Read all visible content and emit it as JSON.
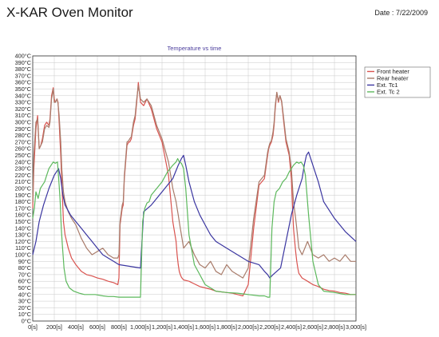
{
  "app": {
    "title": "X-KAR Oven Monitor",
    "date_label": "Date :",
    "date_value": "7/22/2009"
  },
  "chart_data": {
    "type": "line",
    "title": "Temperature vs time",
    "xlabel": "",
    "ylabel": "",
    "xlim": [
      0,
      3000
    ],
    "ylim": [
      0,
      400
    ],
    "x_ticks": [
      "0[s]",
      "200[s]",
      "400[s]",
      "600[s]",
      "800[s]",
      "1,000[s]",
      "1,200[s]",
      "1,400[s]",
      "1,600[s]",
      "1,800[s]",
      "2,000[s]",
      "2,200[s]",
      "2,400[s]",
      "2,600[s]",
      "2,800[s]",
      "3,000[s]"
    ],
    "y_ticks": [
      "0°C",
      "10°C",
      "20°C",
      "30°C",
      "40°C",
      "50°C",
      "60°C",
      "70°C",
      "80°C",
      "90°C",
      "100°C",
      "110°C",
      "120°C",
      "130°C",
      "140°C",
      "150°C",
      "160°C",
      "170°C",
      "180°C",
      "190°C",
      "200°C",
      "210°C",
      "220°C",
      "230°C",
      "240°C",
      "250°C",
      "260°C",
      "270°C",
      "280°C",
      "290°C",
      "300°C",
      "310°C",
      "320°C",
      "330°C",
      "340°C",
      "350°C",
      "360°C",
      "370°C",
      "380°C",
      "390°C",
      "400°C"
    ],
    "grid": true,
    "legend_position": "right",
    "series": [
      {
        "name": "Front heater",
        "color": "#d9534f",
        "x": [
          0,
          10,
          30,
          45,
          60,
          75,
          90,
          110,
          130,
          150,
          160,
          175,
          190,
          200,
          210,
          225,
          235,
          245,
          260,
          270,
          285,
          300,
          330,
          360,
          400,
          450,
          500,
          550,
          600,
          650,
          700,
          750,
          790,
          800,
          810,
          830,
          840,
          850,
          875,
          890,
          900,
          915,
          935,
          950,
          965,
          980,
          1000,
          1030,
          1060,
          1100,
          1150,
          1200,
          1260,
          1300,
          1330,
          1340,
          1350,
          1360,
          1370,
          1380,
          1400,
          1450,
          1500,
          1550,
          1600,
          1650,
          1700,
          1750,
          1800,
          1850,
          1900,
          1950,
          2000,
          2050,
          2100,
          2150,
          2180,
          2190,
          2200,
          2215,
          2230,
          2240,
          2250,
          2265,
          2280,
          2295,
          2310,
          2330,
          2350,
          2380,
          2400,
          2420,
          2440,
          2450,
          2460,
          2470,
          2500,
          2550,
          2600,
          2650,
          2700,
          2750,
          2800,
          2850,
          2900,
          2950,
          3000
        ],
        "y": [
          170,
          230,
          290,
          310,
          260,
          265,
          275,
          295,
          300,
          295,
          305,
          340,
          352,
          335,
          330,
          335,
          330,
          300,
          250,
          210,
          150,
          130,
          110,
          95,
          85,
          75,
          70,
          68,
          65,
          63,
          60,
          58,
          55,
          65,
          145,
          170,
          175,
          215,
          265,
          270,
          270,
          275,
          295,
          305,
          330,
          360,
          330,
          325,
          335,
          320,
          290,
          270,
          220,
          150,
          120,
          100,
          85,
          75,
          70,
          66,
          62,
          60,
          56,
          52,
          50,
          48,
          45,
          44,
          43,
          42,
          40,
          38,
          55,
          140,
          205,
          215,
          250,
          260,
          265,
          270,
          280,
          295,
          320,
          345,
          330,
          340,
          330,
          300,
          270,
          250,
          215,
          140,
          105,
          90,
          80,
          72,
          65,
          60,
          55,
          52,
          48,
          46,
          45,
          43,
          42,
          40,
          40
        ]
      },
      {
        "name": "Rear heater",
        "color": "#a87b6a",
        "x": [
          0,
          10,
          30,
          45,
          60,
          75,
          90,
          110,
          130,
          150,
          160,
          175,
          190,
          200,
          210,
          225,
          235,
          245,
          260,
          270,
          285,
          300,
          330,
          360,
          400,
          450,
          500,
          550,
          600,
          650,
          700,
          750,
          790,
          800,
          810,
          830,
          840,
          850,
          875,
          890,
          900,
          915,
          935,
          950,
          965,
          980,
          1000,
          1030,
          1060,
          1100,
          1150,
          1200,
          1260,
          1300,
          1330,
          1340,
          1350,
          1360,
          1370,
          1380,
          1400,
          1450,
          1500,
          1550,
          1600,
          1650,
          1700,
          1750,
          1800,
          1850,
          1900,
          1950,
          2000,
          2050,
          2100,
          2150,
          2180,
          2190,
          2200,
          2215,
          2230,
          2240,
          2250,
          2265,
          2280,
          2295,
          2310,
          2330,
          2350,
          2380,
          2400,
          2420,
          2440,
          2450,
          2460,
          2470,
          2500,
          2550,
          2600,
          2650,
          2700,
          2750,
          2800,
          2850,
          2900,
          2950,
          3000
        ],
        "y": [
          180,
          250,
          300,
          305,
          260,
          265,
          270,
          290,
          295,
          292,
          300,
          335,
          350,
          330,
          330,
          335,
          328,
          310,
          270,
          230,
          195,
          180,
          165,
          155,
          145,
          125,
          110,
          100,
          105,
          110,
          100,
          95,
          95,
          100,
          150,
          175,
          180,
          220,
          270,
          272,
          275,
          278,
          300,
          310,
          335,
          355,
          335,
          330,
          335,
          325,
          295,
          275,
          240,
          200,
          180,
          170,
          160,
          150,
          140,
          130,
          110,
          120,
          100,
          85,
          80,
          90,
          75,
          70,
          85,
          75,
          70,
          65,
          80,
          155,
          210,
          220,
          255,
          262,
          268,
          272,
          285,
          300,
          325,
          345,
          332,
          340,
          332,
          305,
          275,
          255,
          230,
          180,
          155,
          140,
          125,
          110,
          100,
          120,
          100,
          95,
          100,
          90,
          95,
          90,
          100,
          90,
          90
        ]
      },
      {
        "name": "Ext. Tc1",
        "color": "#3a35a0",
        "x": [
          0,
          30,
          60,
          100,
          150,
          200,
          240,
          260,
          280,
          300,
          350,
          400,
          450,
          500,
          550,
          600,
          650,
          700,
          750,
          800,
          1000,
          1030,
          1100,
          1200,
          1300,
          1350,
          1380,
          1400,
          1420,
          1450,
          1500,
          1550,
          1600,
          1650,
          1700,
          1800,
          1900,
          2000,
          2100,
          2150,
          2180,
          2200,
          2230,
          2300,
          2400,
          2450,
          2500,
          2520,
          2540,
          2560,
          2600,
          2650,
          2700,
          2800,
          2900,
          3000
        ],
        "y": [
          100,
          120,
          150,
          175,
          200,
          220,
          230,
          215,
          190,
          175,
          160,
          150,
          140,
          130,
          120,
          110,
          100,
          95,
          90,
          85,
          80,
          165,
          175,
          195,
          215,
          235,
          245,
          250,
          235,
          210,
          180,
          160,
          145,
          130,
          120,
          110,
          100,
          90,
          85,
          75,
          70,
          65,
          70,
          80,
          160,
          190,
          215,
          235,
          250,
          255,
          235,
          210,
          180,
          155,
          135,
          120
        ]
      },
      {
        "name": "Ext. Tc 2",
        "color": "#5cb85c",
        "x": [
          0,
          15,
          30,
          50,
          70,
          90,
          110,
          130,
          150,
          170,
          190,
          210,
          230,
          245,
          255,
          265,
          275,
          290,
          310,
          340,
          380,
          430,
          480,
          530,
          580,
          650,
          700,
          750,
          800,
          1000,
          1020,
          1040,
          1060,
          1080,
          1100,
          1150,
          1200,
          1250,
          1300,
          1330,
          1345,
          1360,
          1380,
          1400,
          1420,
          1450,
          1500,
          1550,
          1600,
          1650,
          1700,
          1800,
          1900,
          2000,
          2100,
          2150,
          2180,
          2200,
          2220,
          2240,
          2260,
          2290,
          2320,
          2350,
          2380,
          2420,
          2450,
          2470,
          2490,
          2510,
          2530,
          2560,
          2600,
          2650,
          2700,
          2800,
          2900,
          3000
        ],
        "y": [
          155,
          170,
          195,
          185,
          200,
          205,
          210,
          220,
          230,
          235,
          240,
          238,
          240,
          205,
          180,
          140,
          115,
          80,
          60,
          50,
          45,
          42,
          40,
          40,
          40,
          38,
          37,
          37,
          36,
          36,
          150,
          170,
          178,
          180,
          190,
          200,
          210,
          225,
          235,
          240,
          245,
          240,
          238,
          230,
          200,
          130,
          85,
          70,
          55,
          50,
          45,
          43,
          42,
          40,
          38,
          38,
          36,
          36,
          140,
          180,
          195,
          200,
          210,
          215,
          225,
          235,
          240,
          238,
          240,
          235,
          220,
          160,
          90,
          55,
          45,
          43,
          40,
          40
        ]
      }
    ]
  },
  "legend": {
    "items": [
      "Front heater",
      "Rear heater",
      "Ext. Tc1",
      "Ext. Tc 2"
    ]
  }
}
